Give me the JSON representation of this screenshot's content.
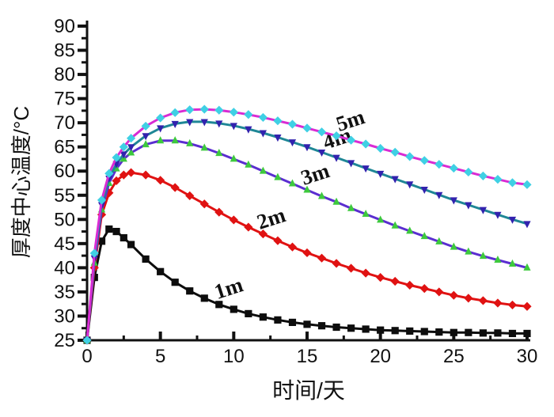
{
  "chart_data": {
    "type": "line",
    "title": "",
    "xlabel": "时间/天",
    "ylabel": "厚度中心温度/°C",
    "xlim": [
      0,
      30
    ],
    "ylim": [
      25,
      90
    ],
    "x_major_ticks": [
      0,
      5,
      10,
      15,
      20,
      25,
      30
    ],
    "x_minor_step": 2.5,
    "y_major_ticks": [
      25,
      30,
      35,
      40,
      45,
      50,
      55,
      60,
      65,
      70,
      75,
      80,
      85,
      90
    ],
    "y_minor_step": 2.5,
    "grid": false,
    "legend_position": "inline-curve-labels",
    "background_color": "#ffffff",
    "axis_color": "#111111",
    "x": [
      0,
      0.5,
      1,
      1.5,
      2,
      2.5,
      3,
      4,
      5,
      6,
      7,
      8,
      9,
      10,
      11,
      12,
      13,
      14,
      15,
      16,
      17,
      18,
      19,
      20,
      21,
      22,
      23,
      24,
      25,
      26,
      27,
      28,
      29,
      30
    ],
    "series": [
      {
        "name": "1m",
        "line_color": "#0d0d0d",
        "marker": "square",
        "marker_color": "#0d0d0d",
        "values": [
          25,
          38,
          45.5,
          48,
          47.5,
          46.2,
          44.8,
          41.8,
          39.2,
          37,
          35.2,
          33.7,
          32.4,
          31.4,
          30.5,
          29.8,
          29.2,
          28.7,
          28.3,
          28,
          27.7,
          27.5,
          27.3,
          27.1,
          27,
          26.9,
          26.8,
          26.7,
          26.6,
          26.6,
          26.5,
          26.5,
          26.4,
          26.4
        ],
        "label": {
          "text": "1m",
          "t": 9.8
        }
      },
      {
        "name": "2m",
        "line_color": "#e01212",
        "marker": "diamond",
        "marker_color": "#e01212",
        "values": [
          25,
          40,
          51,
          55.5,
          58,
          59.2,
          59.7,
          59.2,
          58.1,
          56.6,
          54.9,
          53.2,
          51.5,
          49.9,
          48.4,
          47,
          45.6,
          44.3,
          43.1,
          42,
          40.9,
          39.9,
          38.9,
          38,
          37.2,
          36.4,
          35.7,
          35,
          34.3,
          33.7,
          33.2,
          32.7,
          32.3,
          32
        ],
        "label": {
          "text": "2m",
          "t": 12.7
        }
      },
      {
        "name": "3m",
        "line_color": "#5b2ed0",
        "marker": "triangle-up",
        "marker_color": "#3dc93d",
        "values": [
          25,
          41,
          52,
          57.5,
          60.5,
          62.5,
          63.8,
          65.5,
          66.3,
          66.3,
          65.7,
          64.8,
          63.7,
          62.5,
          61.3,
          60,
          58.7,
          57.4,
          56.1,
          54.8,
          53.6,
          52.3,
          51.1,
          49.9,
          48.7,
          47.6,
          46.5,
          45.4,
          44.3,
          43.3,
          42.4,
          41.6,
          40.8,
          40
        ],
        "label": {
          "text": "3m",
          "t": 15.7
        }
      },
      {
        "name": "4m",
        "line_color": "#1f8796",
        "marker": "triangle-down",
        "marker_color": "#3222ae",
        "values": [
          25,
          42,
          53,
          58.5,
          61.5,
          63.5,
          65,
          67.3,
          68.9,
          69.8,
          70.2,
          70.2,
          69.9,
          69.4,
          68.7,
          67.9,
          67,
          66,
          65,
          63.9,
          62.8,
          61.7,
          60.6,
          59.5,
          58.4,
          57.3,
          56.2,
          55.1,
          54,
          53,
          52,
          51,
          50,
          49.1
        ],
        "label": {
          "text": "4m",
          "t": 17.2
        }
      },
      {
        "name": "5m",
        "line_color": "#d92bd4",
        "marker": "diamond",
        "marker_color": "#3fd0e4",
        "values": [
          25,
          43,
          54,
          59.5,
          62.8,
          65,
          66.8,
          69.3,
          71,
          72.1,
          72.7,
          72.8,
          72.6,
          72.2,
          71.7,
          71.1,
          70.4,
          69.7,
          68.9,
          68.1,
          67.3,
          66.4,
          65.6,
          64.7,
          63.9,
          63,
          62.2,
          61.4,
          60.6,
          59.8,
          59,
          58.3,
          57.6,
          57.2
        ],
        "label": {
          "text": "5m",
          "t": 18.1
        }
      }
    ]
  }
}
